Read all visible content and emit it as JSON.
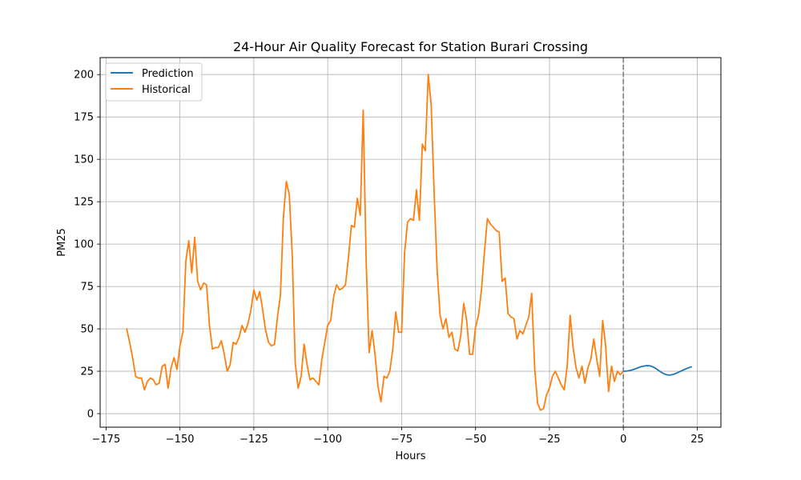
{
  "chart_data": {
    "type": "line",
    "title": "24-Hour Air Quality Forecast for Station Burari Crossing",
    "xlabel": "Hours",
    "ylabel": "PM25",
    "xlim": [
      -177,
      33
    ],
    "ylim": [
      -8,
      210
    ],
    "x_ticks": [
      -175,
      -150,
      -125,
      -100,
      -75,
      -50,
      -25,
      0,
      25
    ],
    "y_ticks": [
      0,
      25,
      50,
      75,
      100,
      125,
      150,
      175,
      200
    ],
    "grid": true,
    "legend_position": "top-left",
    "vline": {
      "x": 0,
      "style": "dashed",
      "color": "#808080"
    },
    "series": [
      {
        "name": "Prediction",
        "color": "#1f77b4",
        "x": [
          0,
          1,
          2,
          3,
          4,
          5,
          6,
          7,
          8,
          9,
          10,
          11,
          12,
          13,
          14,
          15,
          16,
          17,
          18,
          19,
          20,
          21,
          22,
          23
        ],
        "y": [
          25.0,
          25.1,
          25.4,
          25.8,
          26.4,
          27.1,
          27.7,
          28.1,
          28.3,
          28.2,
          27.6,
          26.6,
          25.4,
          24.2,
          23.3,
          22.8,
          22.8,
          23.2,
          23.9,
          24.7,
          25.5,
          26.3,
          27.0,
          27.6
        ]
      },
      {
        "name": "Historical",
        "color": "#ff7f0e",
        "x": [
          -168,
          -167,
          -166,
          -165,
          -164,
          -163,
          -162,
          -161,
          -160,
          -159,
          -158,
          -157,
          -156,
          -155,
          -154,
          -153,
          -152,
          -151,
          -150,
          -149,
          -148,
          -147,
          -146,
          -145,
          -144,
          -143,
          -142,
          -141,
          -140,
          -139,
          -138,
          -137,
          -136,
          -135,
          -134,
          -133,
          -132,
          -131,
          -130,
          -129,
          -128,
          -127,
          -126,
          -125,
          -124,
          -123,
          -122,
          -121,
          -120,
          -119,
          -118,
          -117,
          -116,
          -115,
          -114,
          -113,
          -112,
          -111,
          -110,
          -109,
          -108,
          -107,
          -106,
          -105,
          -104,
          -103,
          -102,
          -101,
          -100,
          -99,
          -98,
          -97,
          -96,
          -95,
          -94,
          -93,
          -92,
          -91,
          -90,
          -89,
          -88,
          -87,
          -86,
          -85,
          -84,
          -83,
          -82,
          -81,
          -80,
          -79,
          -78,
          -77,
          -76,
          -75,
          -74,
          -73,
          -72,
          -71,
          -70,
          -69,
          -68,
          -67,
          -66,
          -65,
          -64,
          -63,
          -62,
          -61,
          -60,
          -59,
          -58,
          -57,
          -56,
          -55,
          -54,
          -53,
          -52,
          -51,
          -50,
          -49,
          -48,
          -47,
          -46,
          -45,
          -44,
          -43,
          -42,
          -41,
          -40,
          -39,
          -38,
          -37,
          -36,
          -35,
          -34,
          -33,
          -32,
          -31,
          -30,
          -29,
          -28,
          -27,
          -26,
          -25,
          -24,
          -23,
          -22,
          -21,
          -20,
          -19,
          -18,
          -17,
          -16,
          -15,
          -14,
          -13,
          -12,
          -11,
          -10,
          -9,
          -8,
          -7,
          -6,
          -5,
          -4,
          -3,
          -2,
          -1,
          0
        ],
        "y": [
          50,
          42,
          33,
          22,
          21,
          21,
          14,
          19,
          21,
          20,
          17,
          18,
          28,
          29,
          15,
          27,
          33,
          26,
          40,
          48,
          90,
          102,
          83,
          104,
          78,
          73,
          77,
          76,
          52,
          38,
          39,
          39,
          43,
          35,
          25,
          29,
          42,
          41,
          45,
          52,
          48,
          53,
          61,
          73,
          67,
          72,
          61,
          49,
          42,
          40,
          41,
          57,
          70,
          116,
          137,
          129,
          93,
          30,
          15,
          22,
          41,
          29,
          20,
          21,
          19,
          17,
          32,
          42,
          52,
          55,
          69,
          76,
          73,
          74,
          76,
          92,
          111,
          110,
          127,
          117,
          179,
          90,
          36,
          49,
          35,
          16,
          7,
          22,
          21,
          25,
          38,
          60,
          48,
          48,
          95,
          113,
          115,
          114,
          132,
          114,
          159,
          155,
          200,
          182,
          130,
          85,
          58,
          50,
          56,
          45,
          48,
          38,
          37,
          46,
          65,
          55,
          35,
          35,
          51,
          58,
          73,
          95,
          115,
          112,
          110,
          108,
          107,
          78,
          80,
          59,
          57,
          56,
          44,
          49,
          47,
          52,
          57,
          71,
          27,
          6,
          2,
          3,
          11,
          15,
          22,
          25,
          21,
          17,
          14,
          28,
          58,
          39,
          27,
          21,
          28,
          18,
          27,
          32,
          44,
          32,
          22,
          55,
          40,
          13,
          28,
          19,
          25,
          23,
          25
        ]
      }
    ]
  }
}
